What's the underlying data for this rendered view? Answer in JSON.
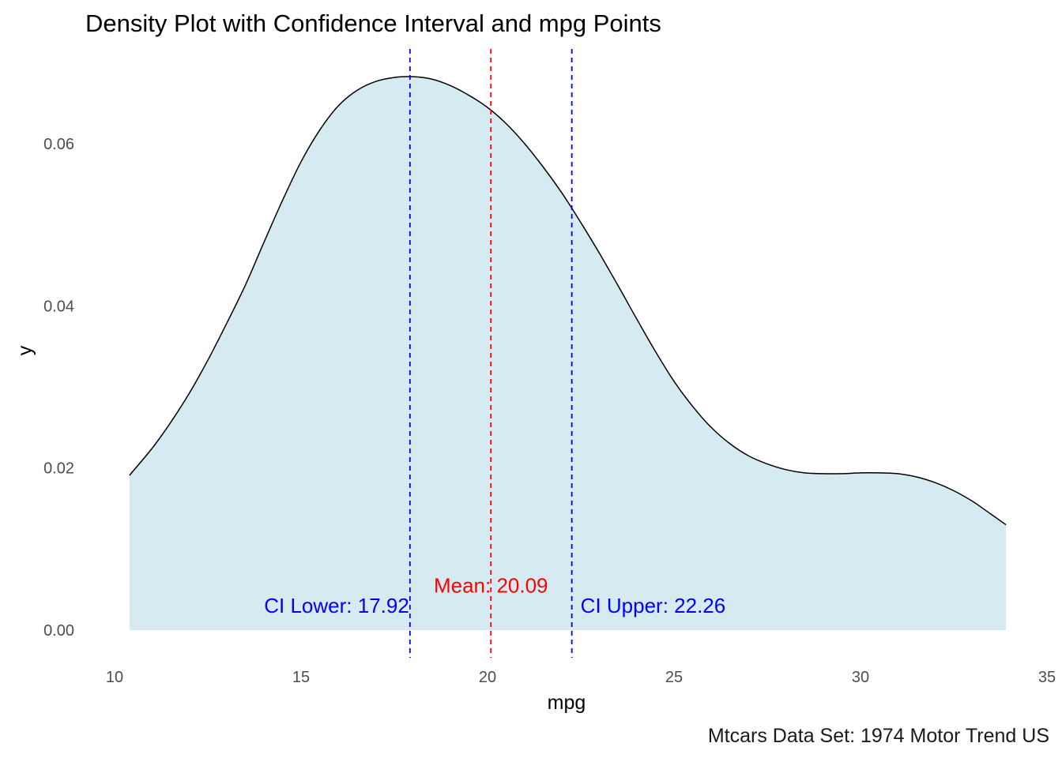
{
  "chart_data": {
    "type": "area",
    "title": "Density Plot with Confidence Interval and mpg Points",
    "xlabel": "mpg",
    "ylabel": "y",
    "caption": "Mtcars Data Set: 1974 Motor Trend US",
    "xlim": [
      10,
      35
    ],
    "ylim": [
      0,
      0.0685
    ],
    "grid": false,
    "x_ticks": [
      10,
      15,
      20,
      25,
      30,
      35
    ],
    "y_ticks": [
      0.0,
      0.02,
      0.04,
      0.06
    ],
    "x_tick_labels": [
      "10",
      "15",
      "20",
      "25",
      "30",
      "35"
    ],
    "y_tick_labels": [
      "0.00",
      "0.02",
      "0.04",
      "0.06"
    ],
    "fill_color": "#d6eaf2",
    "line_color": "#000000",
    "series": [
      {
        "x": [
          10.4,
          11.0,
          11.5,
          12.0,
          12.5,
          13.0,
          13.5,
          14.0,
          14.5,
          15.0,
          15.5,
          16.0,
          16.5,
          17.0,
          17.5,
          18.0,
          18.5,
          19.0,
          19.5,
          20.0,
          20.5,
          21.0,
          21.5,
          22.0,
          22.5,
          23.0,
          23.5,
          24.0,
          24.5,
          25.0,
          25.5,
          26.0,
          26.5,
          27.0,
          27.5,
          28.0,
          28.5,
          29.0,
          29.5,
          30.0,
          30.5,
          31.0,
          31.5,
          32.0,
          32.5,
          33.0,
          33.5,
          33.9
        ],
        "values": [
          0.0191,
          0.0224,
          0.0256,
          0.0292,
          0.0333,
          0.0378,
          0.0425,
          0.0478,
          0.053,
          0.0578,
          0.0617,
          0.0647,
          0.0666,
          0.0677,
          0.0682,
          0.0683,
          0.068,
          0.0672,
          0.066,
          0.0645,
          0.0625,
          0.06,
          0.0571,
          0.0539,
          0.0503,
          0.0465,
          0.0425,
          0.0384,
          0.0344,
          0.0307,
          0.0276,
          0.025,
          0.023,
          0.0215,
          0.0205,
          0.0198,
          0.0194,
          0.0193,
          0.0193,
          0.0194,
          0.0194,
          0.0193,
          0.0189,
          0.0182,
          0.0172,
          0.0159,
          0.0143,
          0.013
        ]
      }
    ],
    "vlines": [
      {
        "x": 17.92,
        "color": "#0000ff",
        "label": "CI Lower: 17.92",
        "label_y": 0.003,
        "anchor": "end"
      },
      {
        "x": 20.09,
        "color": "#ff0000",
        "label": "Mean: 20.09",
        "label_y": 0.0055,
        "anchor": "middle"
      },
      {
        "x": 22.26,
        "color": "#0000ff",
        "label": "CI Upper: 22.26",
        "label_y": 0.003,
        "anchor": "start"
      }
    ]
  }
}
